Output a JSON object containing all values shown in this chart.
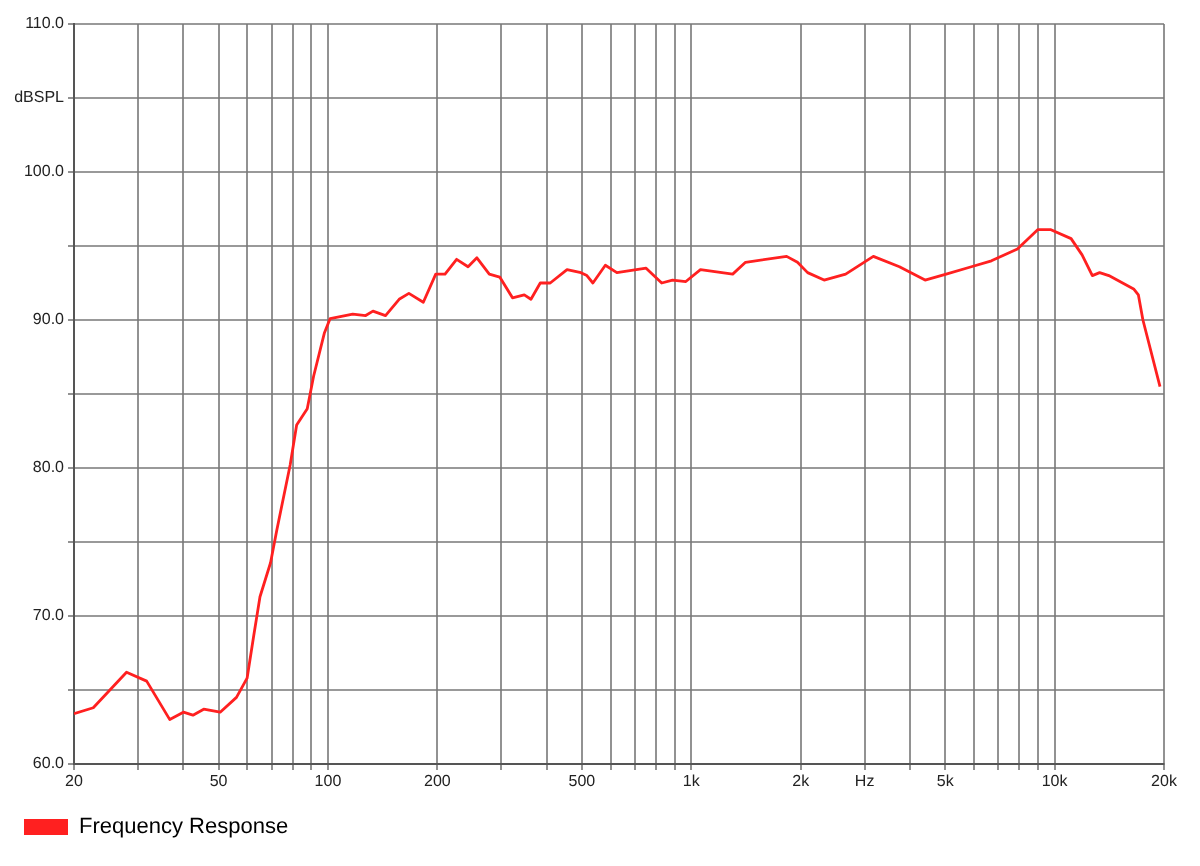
{
  "chart_data": {
    "type": "line",
    "x": [
      20,
      22.6,
      27.9,
      31.7,
      36.7,
      40,
      42.5,
      45.5,
      50.5,
      56,
      59.9,
      62.5,
      65,
      69.5,
      72.3,
      78.7,
      82,
      87.7,
      91.3,
      97.7,
      101.4,
      117,
      127,
      133,
      144,
      157,
      167,
      183,
      198,
      210,
      226,
      243,
      257,
      278,
      297,
      322,
      347,
      362,
      384,
      409,
      455,
      497,
      516,
      536,
      580,
      624,
      706,
      751,
      829,
      888,
      966,
      1060,
      1300,
      1410,
      1830,
      1960,
      2090,
      2320,
      2660,
      3170,
      3740,
      4400,
      5030,
      5900,
      6700,
      7900,
      8980,
      9770,
      11100,
      11900,
      12700,
      13300,
      14100,
      16500,
      17000,
      17500,
      19500
    ],
    "series": [
      {
        "name": "Frequency Response",
        "color": "#ff2020",
        "values": [
          63.4,
          63.8,
          66.2,
          65.6,
          63.0,
          63.5,
          63.3,
          63.7,
          63.5,
          64.5,
          65.8,
          68.7,
          71.3,
          73.6,
          75.8,
          80.2,
          82.9,
          84.0,
          86.2,
          89.1,
          90.1,
          90.4,
          90.3,
          90.6,
          90.3,
          91.4,
          91.8,
          91.2,
          93.1,
          93.1,
          94.1,
          93.6,
          94.2,
          93.1,
          92.9,
          91.5,
          91.7,
          91.4,
          92.5,
          92.5,
          93.4,
          93.2,
          93.0,
          92.5,
          93.7,
          93.2,
          93.4,
          93.5,
          92.5,
          92.7,
          92.6,
          93.4,
          93.1,
          93.9,
          94.3,
          93.9,
          93.2,
          92.7,
          93.1,
          94.3,
          93.6,
          92.7,
          93.1,
          93.6,
          94.0,
          94.8,
          96.1,
          96.1,
          95.5,
          94.4,
          93.0,
          93.2,
          93.0,
          92.1,
          91.7,
          90.0,
          85.5
        ]
      }
    ],
    "log": "x",
    "xlim": [
      20,
      20000
    ],
    "xticks": [
      20,
      {
        "value": 30,
        "label": null
      },
      {
        "value": 40,
        "label": null
      },
      50,
      {
        "value": 60,
        "label": null
      },
      {
        "value": 70,
        "label": null
      },
      {
        "value": 80,
        "label": null
      },
      {
        "value": 90,
        "label": null
      },
      100,
      200,
      {
        "value": 300,
        "label": null
      },
      {
        "value": 400,
        "label": null
      },
      500,
      {
        "value": 600,
        "label": null
      },
      {
        "value": 700,
        "label": null
      },
      {
        "value": 800,
        "label": null
      },
      {
        "value": 900,
        "label": null
      },
      {
        "value": 1000,
        "label": "1k"
      },
      {
        "value": 2000,
        "label": "2k"
      },
      {
        "value": 3000,
        "label": "Hz"
      },
      {
        "value": 4000,
        "label": null
      },
      {
        "value": 5000,
        "label": "5k"
      },
      {
        "value": 6000,
        "label": null
      },
      {
        "value": 7000,
        "label": null
      },
      {
        "value": 8000,
        "label": null
      },
      {
        "value": 9000,
        "label": null
      },
      {
        "value": 10000,
        "label": "10k"
      },
      {
        "value": 20000,
        "label": "20k"
      }
    ],
    "ylim": [
      60,
      110
    ],
    "yticks": [
      {
        "value": 60,
        "label": "60.0"
      },
      {
        "value": 65,
        "label": null
      },
      {
        "value": 70,
        "label": "70.0"
      },
      {
        "value": 75,
        "label": null
      },
      {
        "value": 80,
        "label": "80.0"
      },
      {
        "value": 85,
        "label": null
      },
      {
        "value": 90,
        "label": "90.0"
      },
      {
        "value": 95,
        "label": null
      },
      {
        "value": 100,
        "label": "100.0"
      },
      {
        "value": 105,
        "label": "dBSPL"
      },
      {
        "value": 110,
        "label": "110.0"
      }
    ],
    "grid": true,
    "legend": "bottom left",
    "marker": "none",
    "line_style": "solid"
  }
}
